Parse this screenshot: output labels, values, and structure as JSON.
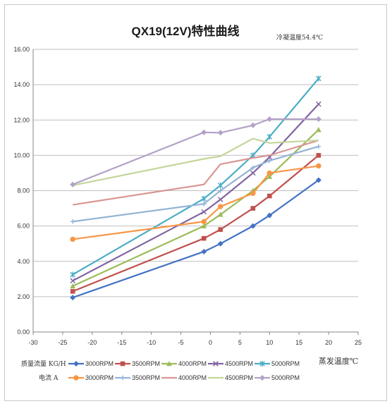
{
  "chart_data": {
    "type": "line",
    "title": "QX19(12V)特性曲线",
    "annotation": "冷凝温度54.4℃",
    "xlabel": "蒸发温度℃",
    "ylabel": "",
    "xlim": [
      -30,
      25
    ],
    "ylim": [
      0,
      16
    ],
    "x_ticks": [
      "-30",
      "-25",
      "-20",
      "-15",
      "-10",
      "-5",
      "0",
      "5",
      "10",
      "15",
      "20",
      "25"
    ],
    "y_ticks": [
      "0.00",
      "2.00",
      "4.00",
      "6.00",
      "8.00",
      "10.00",
      "12.00",
      "14.00",
      "16.00"
    ],
    "grid": "horizontal",
    "legend": {
      "position": "bottom",
      "group1_label": "质量流量 KG/H",
      "group2_label": "电流 A"
    },
    "series": [
      {
        "name": "3000RPM",
        "group": "质量流量 KG/H",
        "color": "#4472C4",
        "marker": "diamond",
        "x": [
          -23.3,
          -1.1,
          1.7,
          7.2,
          10,
          18.3
        ],
        "y": [
          1.95,
          4.55,
          5.0,
          6.0,
          6.6,
          8.6
        ]
      },
      {
        "name": "3500RPM",
        "group": "质量流量 KG/H",
        "color": "#C0504D",
        "marker": "square",
        "x": [
          -23.3,
          -1.1,
          1.7,
          7.2,
          10,
          18.3
        ],
        "y": [
          2.3,
          5.3,
          5.8,
          7.0,
          7.7,
          10.0
        ]
      },
      {
        "name": "4000RPM",
        "group": "质量流量 KG/H",
        "color": "#9BBB59",
        "marker": "triangle",
        "x": [
          -23.3,
          -1.1,
          1.7,
          7.2,
          10,
          18.3
        ],
        "y": [
          2.6,
          6.0,
          6.65,
          8.0,
          8.8,
          11.45
        ]
      },
      {
        "name": "4500RPM",
        "group": "质量流量 KG/H",
        "color": "#8064A2",
        "marker": "x",
        "x": [
          -23.3,
          -1.1,
          1.7,
          7.2,
          10,
          18.3
        ],
        "y": [
          2.9,
          6.8,
          7.5,
          9.0,
          9.9,
          12.9
        ]
      },
      {
        "name": "5000RPM",
        "group": "质量流量 KG/H",
        "color": "#4BACC6",
        "marker": "star",
        "x": [
          -23.3,
          -1.1,
          1.7,
          7.2,
          10,
          18.3
        ],
        "y": [
          3.25,
          7.55,
          8.3,
          10.0,
          11.05,
          14.35
        ]
      },
      {
        "name": "3000RPM",
        "group": "电流 A",
        "color": "#F79646",
        "marker": "circle",
        "x": [
          -23.3,
          -1.1,
          1.7,
          7.2,
          10,
          18.3
        ],
        "y": [
          5.25,
          6.25,
          7.1,
          7.85,
          9.0,
          9.4
        ]
      },
      {
        "name": "3500RPM",
        "group": "电流 A",
        "color": "#95B3D7",
        "marker": "plus",
        "x": [
          -23.3,
          -1.1,
          1.7,
          7.2,
          10,
          18.3
        ],
        "y": [
          6.25,
          7.25,
          8.0,
          9.3,
          9.7,
          10.5
        ]
      },
      {
        "name": "4000RPM",
        "group": "电流 A",
        "color": "#D99694",
        "marker": "dash",
        "x": [
          -23.3,
          -1.1,
          1.7,
          7.2,
          10,
          18.3
        ],
        "y": [
          7.2,
          8.35,
          9.5,
          9.85,
          10.0,
          10.85
        ]
      },
      {
        "name": "4500RPM",
        "group": "电流 A",
        "color": "#C3D69B",
        "marker": "dash",
        "x": [
          -23.3,
          -1.1,
          1.7,
          7.2,
          10,
          18.3
        ],
        "y": [
          8.3,
          9.8,
          9.95,
          10.95,
          10.7,
          10.85
        ]
      },
      {
        "name": "5000RPM",
        "group": "电流 A",
        "color": "#B3A2C7",
        "marker": "diamond",
        "x": [
          -23.3,
          -1.1,
          1.7,
          7.2,
          10,
          18.3
        ],
        "y": [
          8.35,
          11.3,
          11.28,
          11.7,
          12.05,
          12.05
        ]
      }
    ]
  }
}
